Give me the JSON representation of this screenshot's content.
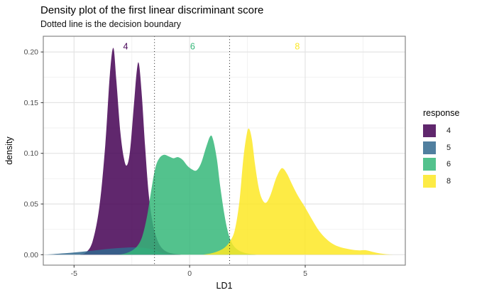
{
  "title": "Density plot of the first linear discriminant score",
  "subtitle": "Dotted line is the decision boundary",
  "axes": {
    "x": {
      "label": "LD1",
      "ticks": [
        "-5",
        "0",
        "5"
      ]
    },
    "y": {
      "label": "density",
      "ticks": [
        "0.00",
        "0.05",
        "0.10",
        "0.15",
        "0.20"
      ]
    }
  },
  "legend": {
    "title": "response",
    "fill_opacity": 0.85,
    "items": [
      {
        "label": "4",
        "color": "#440154"
      },
      {
        "label": "5",
        "color": "#31688E"
      },
      {
        "label": "6",
        "color": "#35B779"
      },
      {
        "label": "8",
        "color": "#FDE725"
      }
    ]
  },
  "colors": {
    "grid_major": "#E4E4E4",
    "grid_minor": "#F2F2F2",
    "panel_border": "#858585",
    "tick_text": "#4D4D4D",
    "boundary_line": "#1A1A1A"
  },
  "chart_data": {
    "type": "area",
    "title": "Density plot of the first linear discriminant score",
    "subtitle": "Dotted line is the decision boundary",
    "xlabel": "LD1",
    "ylabel": "density",
    "xlim": [
      -6.33,
      9.33
    ],
    "ylim": [
      -0.0103,
      0.2155
    ],
    "x_major_ticks": [
      -5,
      0,
      5
    ],
    "x_minor_ticks": [
      -2.5,
      2.5,
      7.5
    ],
    "y_major_ticks": [
      0,
      0.05,
      0.1,
      0.15,
      0.2
    ],
    "y_minor_ticks": [
      0.025,
      0.075,
      0.125,
      0.175
    ],
    "grid": true,
    "legend_position": "right",
    "decision_boundaries": [
      -1.52,
      1.73
    ],
    "annotations": [
      {
        "text": "4",
        "x": -2.77,
        "y": 0.2055,
        "color": "#440154"
      },
      {
        "text": "6",
        "x": 0.13,
        "y": 0.2055,
        "color": "#35B779"
      },
      {
        "text": "8",
        "x": 4.66,
        "y": 0.2055,
        "color": "#FDE725"
      }
    ],
    "series": [
      {
        "name": "4",
        "color": "#440154",
        "fill_opacity": 0.85,
        "points": [
          [
            -4.75,
            0
          ],
          [
            -4.5,
            0.002
          ],
          [
            -4.2,
            0.013
          ],
          [
            -3.9,
            0.048
          ],
          [
            -3.65,
            0.108
          ],
          [
            -3.45,
            0.178
          ],
          [
            -3.3,
            0.204
          ],
          [
            -3.17,
            0.172
          ],
          [
            -3.0,
            0.122
          ],
          [
            -2.85,
            0.096
          ],
          [
            -2.72,
            0.088
          ],
          [
            -2.58,
            0.102
          ],
          [
            -2.42,
            0.145
          ],
          [
            -2.3,
            0.178
          ],
          [
            -2.2,
            0.189
          ],
          [
            -2.07,
            0.158
          ],
          [
            -1.93,
            0.108
          ],
          [
            -1.78,
            0.062
          ],
          [
            -1.62,
            0.034
          ],
          [
            -1.45,
            0.018
          ],
          [
            -1.25,
            0.008
          ],
          [
            -1.0,
            0.003
          ],
          [
            -0.7,
            0.001
          ],
          [
            -0.35,
            0
          ]
        ]
      },
      {
        "name": "5",
        "color": "#31688E",
        "fill_opacity": 0.85,
        "points": [
          [
            -6.3,
            0
          ],
          [
            -5.9,
            0.0006
          ],
          [
            -5.4,
            0.0014
          ],
          [
            -4.9,
            0.0024
          ],
          [
            -4.4,
            0.0035
          ],
          [
            -3.9,
            0.0048
          ],
          [
            -3.4,
            0.006
          ],
          [
            -2.9,
            0.0068
          ],
          [
            -2.4,
            0.0072
          ],
          [
            -2.0,
            0.0068
          ],
          [
            -1.7,
            0.0057
          ],
          [
            -1.45,
            0.004
          ],
          [
            -1.25,
            0.0022
          ],
          [
            -1.05,
            0.001
          ],
          [
            -0.85,
            0.0003
          ],
          [
            -0.6,
            0
          ]
        ]
      },
      {
        "name": "6",
        "color": "#35B779",
        "fill_opacity": 0.85,
        "points": [
          [
            -3.1,
            0
          ],
          [
            -2.8,
            0.0012
          ],
          [
            -2.5,
            0.004
          ],
          [
            -2.25,
            0.009
          ],
          [
            -2.05,
            0.018
          ],
          [
            -1.85,
            0.037
          ],
          [
            -1.65,
            0.065
          ],
          [
            -1.48,
            0.086
          ],
          [
            -1.3,
            0.0955
          ],
          [
            -1.1,
            0.0985
          ],
          [
            -0.9,
            0.097
          ],
          [
            -0.7,
            0.0952
          ],
          [
            -0.5,
            0.0962
          ],
          [
            -0.3,
            0.0935
          ],
          [
            -0.1,
            0.0878
          ],
          [
            0.1,
            0.0842
          ],
          [
            0.3,
            0.0832
          ],
          [
            0.5,
            0.0905
          ],
          [
            0.72,
            0.1065
          ],
          [
            0.9,
            0.1172
          ],
          [
            1.02,
            0.113
          ],
          [
            1.18,
            0.094
          ],
          [
            1.32,
            0.068
          ],
          [
            1.48,
            0.043
          ],
          [
            1.62,
            0.026
          ],
          [
            1.78,
            0.0138
          ],
          [
            1.98,
            0.0068
          ],
          [
            2.25,
            0.0028
          ],
          [
            2.55,
            0.001
          ],
          [
            2.9,
            0
          ]
        ]
      },
      {
        "name": "8",
        "color": "#FDE725",
        "fill_opacity": 0.85,
        "points": [
          [
            0.55,
            0
          ],
          [
            0.9,
            0.0012
          ],
          [
            1.2,
            0.0032
          ],
          [
            1.5,
            0.0068
          ],
          [
            1.73,
            0.0128
          ],
          [
            1.95,
            0.024
          ],
          [
            2.15,
            0.052
          ],
          [
            2.33,
            0.096
          ],
          [
            2.48,
            0.12
          ],
          [
            2.58,
            0.124
          ],
          [
            2.7,
            0.113
          ],
          [
            2.83,
            0.089
          ],
          [
            2.98,
            0.067
          ],
          [
            3.12,
            0.0555
          ],
          [
            3.3,
            0.0512
          ],
          [
            3.5,
            0.059
          ],
          [
            3.72,
            0.0742
          ],
          [
            3.92,
            0.0838
          ],
          [
            4.05,
            0.085
          ],
          [
            4.22,
            0.0795
          ],
          [
            4.45,
            0.0685
          ],
          [
            4.7,
            0.0575
          ],
          [
            5.0,
            0.0465
          ],
          [
            5.3,
            0.0345
          ],
          [
            5.6,
            0.0235
          ],
          [
            5.9,
            0.0158
          ],
          [
            6.2,
            0.0105
          ],
          [
            6.5,
            0.0076
          ],
          [
            6.8,
            0.0059
          ],
          [
            7.1,
            0.0047
          ],
          [
            7.35,
            0.0043
          ],
          [
            7.6,
            0.0045
          ],
          [
            7.85,
            0.0032
          ],
          [
            8.15,
            0.0016
          ],
          [
            8.5,
            0.0005
          ],
          [
            8.85,
            0
          ]
        ]
      }
    ]
  }
}
